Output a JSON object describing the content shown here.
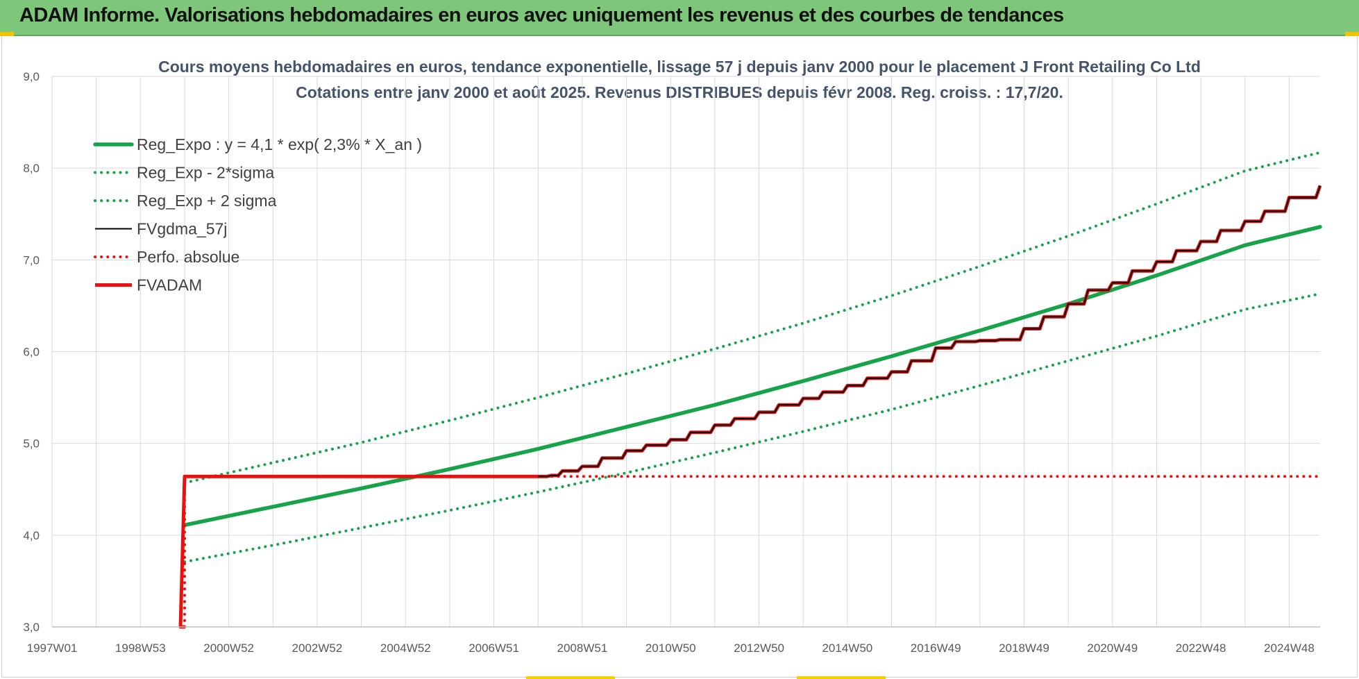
{
  "header": {
    "title": "ADAM Informe. Valorisations hebdomadaires en euros avec uniquement les revenus et des courbes de tendances"
  },
  "colors": {
    "banner": "#7ec77a",
    "trend_green": "#17a34a",
    "fvadam_red": "#e8110f",
    "fvgdma_black": "#000000",
    "grid": "#d9d9d9"
  },
  "chart_data": {
    "type": "line",
    "title": [
      "Cours moyens hebdomadaires en euros, tendance exponentielle, lissage 57 j depuis janv 2000 pour le placement J Front Retailing Co Ltd",
      "Cotations entre janv 2000 et août 2025.  Revenus DISTRIBUES depuis févr 2008.  Reg. croiss. : 17,7/20."
    ],
    "xlabel": "",
    "ylabel": "",
    "x_range_years": [
      1997.0,
      2025.7
    ],
    "ylim": [
      3.0,
      9.0
    ],
    "y_ticks": [
      "3,0",
      "4,0",
      "5,0",
      "6,0",
      "7,0",
      "8,0",
      "9,0"
    ],
    "x_tick_labels": [
      "1997W01",
      "1998W53",
      "2000W52",
      "2002W52",
      "2004W52",
      "2006W51",
      "2008W51",
      "2010W50",
      "2012W50",
      "2014W50",
      "2016W49",
      "2018W49",
      "2020W49",
      "2022W48",
      "2024W48"
    ],
    "x_tick_years": [
      1997.0,
      1999.0,
      2001.0,
      2003.0,
      2005.0,
      2007.0,
      2009.0,
      2011.0,
      2013.0,
      2015.0,
      2017.0,
      2019.0,
      2021.0,
      2023.0,
      2025.0
    ],
    "legend_position": "top-left",
    "grid": true,
    "series": [
      {
        "name": "Reg_Expo : y = 4,1 * exp( 2,3% *  X_an )",
        "style": "solid-thick",
        "color": "#17a34a",
        "x": [
          2000.0,
          2002.0,
          2004.0,
          2006.0,
          2008.0,
          2010.0,
          2012.0,
          2014.0,
          2016.0,
          2018.0,
          2020.0,
          2022.0,
          2024.0,
          2025.7
        ],
        "y": [
          4.11,
          4.31,
          4.51,
          4.72,
          4.94,
          5.18,
          5.42,
          5.68,
          5.95,
          6.23,
          6.52,
          6.83,
          7.16,
          7.36
        ]
      },
      {
        "name": "Reg_Exp - 2*sigma",
        "style": "dotted",
        "color": "#17a34a",
        "x": [
          2000.0,
          2002.0,
          2004.0,
          2006.0,
          2008.0,
          2010.0,
          2012.0,
          2014.0,
          2016.0,
          2018.0,
          2020.0,
          2022.0,
          2024.0,
          2025.7
        ],
        "y": [
          3.71,
          3.89,
          4.08,
          4.27,
          4.47,
          4.68,
          4.9,
          5.13,
          5.37,
          5.63,
          5.9,
          6.17,
          6.46,
          6.63
        ]
      },
      {
        "name": "Reg_Exp + 2 sigma",
        "style": "dotted",
        "color": "#17a34a",
        "x": [
          2000.0,
          2002.0,
          2004.0,
          2006.0,
          2008.0,
          2010.0,
          2012.0,
          2014.0,
          2016.0,
          2018.0,
          2020.0,
          2022.0,
          2024.0,
          2025.7
        ],
        "y": [
          4.57,
          4.79,
          5.01,
          5.25,
          5.5,
          5.76,
          6.03,
          6.31,
          6.61,
          6.93,
          7.26,
          7.61,
          7.97,
          8.17
        ]
      },
      {
        "name": "FVgdma_57j",
        "style": "solid-thin",
        "color": "#000000",
        "x": [
          2008.0,
          2008.3,
          2008.55,
          2009.0,
          2009.45,
          2010.0,
          2010.45,
          2011.0,
          2011.45,
          2012.0,
          2012.45,
          2013.0,
          2013.45,
          2014.0,
          2014.45,
          2015.0,
          2015.45,
          2016.0,
          2016.45,
          2017.0,
          2017.45,
          2018.0,
          2018.45,
          2019.0,
          2019.45,
          2020.0,
          2020.45,
          2021.0,
          2021.45,
          2022.0,
          2022.45,
          2023.0,
          2023.45,
          2024.0,
          2024.45,
          2025.0,
          2025.7
        ],
        "y": [
          4.64,
          4.65,
          4.7,
          4.75,
          4.84,
          4.92,
          4.98,
          5.04,
          5.12,
          5.2,
          5.27,
          5.34,
          5.42,
          5.49,
          5.56,
          5.63,
          5.71,
          5.78,
          5.9,
          6.04,
          6.11,
          6.12,
          6.13,
          6.25,
          6.38,
          6.52,
          6.67,
          6.75,
          6.88,
          6.98,
          7.1,
          7.2,
          7.32,
          7.42,
          7.53,
          7.68,
          7.81
        ]
      },
      {
        "name": "Perfo. absolue",
        "style": "dotted",
        "color": "#e8110f",
        "x": [
          2000.0,
          2000.0,
          2025.7
        ],
        "y": [
          3.0,
          4.64,
          4.64
        ]
      },
      {
        "name": "FVADAM",
        "style": "step-thick",
        "color": "#e8110f",
        "x": [
          2000.0,
          2000.0,
          2008.0,
          2008.3,
          2008.55,
          2009.0,
          2009.45,
          2010.0,
          2010.45,
          2011.0,
          2011.45,
          2012.0,
          2012.45,
          2013.0,
          2013.45,
          2014.0,
          2014.45,
          2015.0,
          2015.45,
          2016.0,
          2016.45,
          2017.0,
          2017.45,
          2018.0,
          2018.45,
          2019.0,
          2019.45,
          2020.0,
          2020.45,
          2021.0,
          2021.45,
          2022.0,
          2022.45,
          2023.0,
          2023.45,
          2024.0,
          2024.45,
          2025.0,
          2025.7
        ],
        "y": [
          3.0,
          4.64,
          4.64,
          4.65,
          4.7,
          4.75,
          4.84,
          4.92,
          4.98,
          5.04,
          5.12,
          5.2,
          5.27,
          5.34,
          5.42,
          5.49,
          5.56,
          5.63,
          5.71,
          5.78,
          5.9,
          6.04,
          6.11,
          6.12,
          6.13,
          6.25,
          6.38,
          6.52,
          6.67,
          6.75,
          6.88,
          6.98,
          7.1,
          7.2,
          7.32,
          7.42,
          7.53,
          7.68,
          7.81
        ]
      }
    ]
  }
}
